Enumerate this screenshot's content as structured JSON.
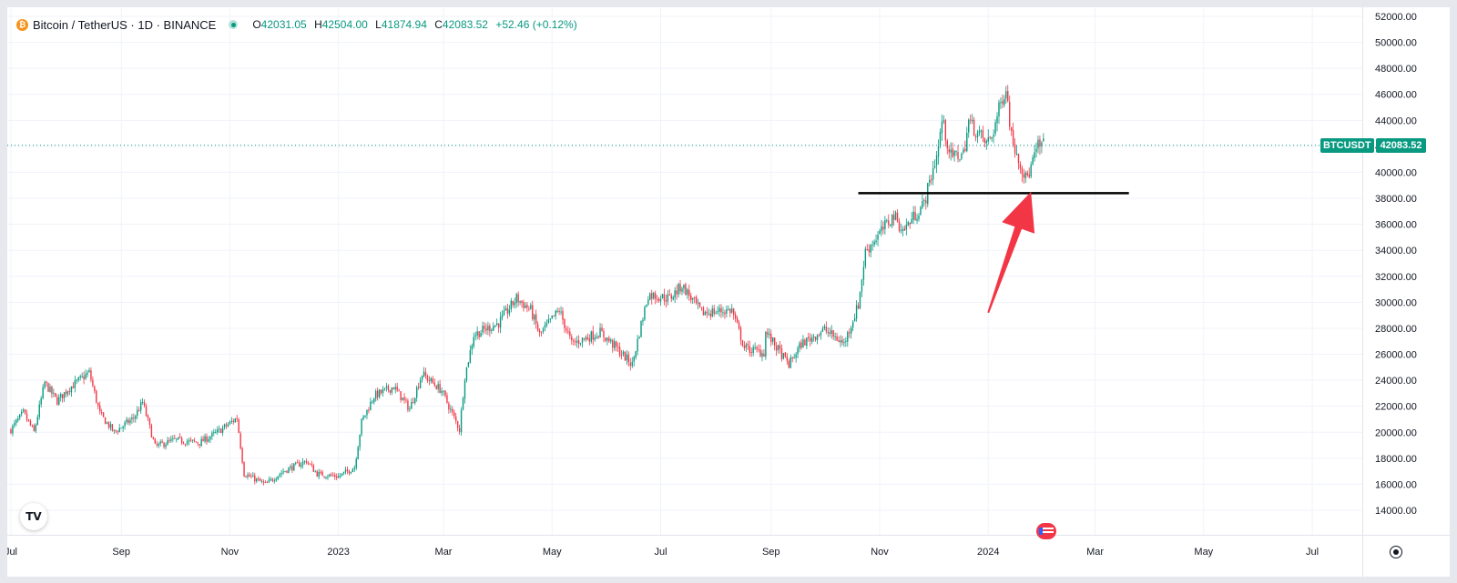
{
  "header": {
    "title": "Bitcoin / TetherUS · 1D · BINANCE",
    "logo_letter": "₿",
    "open_label": "O",
    "open": "42031.05",
    "high_label": "H",
    "high": "42504.00",
    "low_label": "L",
    "low": "41874.94",
    "close_label": "C",
    "close": "42083.52",
    "change": "+52.46 (+0.12%)"
  },
  "price_tag": {
    "symbol": "BTCUSDT",
    "value": "42083.52"
  },
  "watermark": "TV",
  "icons": {
    "settings": "gear-icon",
    "flag": "us-flag-icon",
    "logo": "tradingview-logo-icon"
  },
  "colors": {
    "up": "#089981",
    "down": "#f23645",
    "grid": "#f0f3fa",
    "text": "#131722",
    "arrow": "#f23645",
    "support_line": "#000000"
  },
  "chart_data": {
    "type": "candlestick",
    "symbol": "BTCUSDT",
    "timeframe": "1D",
    "exchange": "BINANCE",
    "x_ticks": [
      "Jul",
      "Sep",
      "Nov",
      "2023",
      "Mar",
      "May",
      "Jul",
      "Sep",
      "Nov",
      "2024",
      "Mar",
      "May",
      "Jul"
    ],
    "y_ticks": [
      "14000.00",
      "16000.00",
      "18000.00",
      "20000.00",
      "22000.00",
      "24000.00",
      "26000.00",
      "28000.00",
      "30000.00",
      "32000.00",
      "34000.00",
      "36000.00",
      "38000.00",
      "40000.00",
      "42000.00",
      "44000.00",
      "46000.00",
      "48000.00",
      "50000.00",
      "52000.00"
    ],
    "ylim": [
      12000,
      53000
    ],
    "x_range": [
      "2022-07-01",
      "2024-07-31"
    ],
    "current_price": 42083.52,
    "support_level": 38400,
    "support_from": "2023-10-20",
    "support_to": "2024-03-20",
    "arrow": {
      "from_date": "2024-01-01",
      "from_price": 29200,
      "to_date": "2024-01-25",
      "to_price": 38500
    },
    "path": [
      [
        "2022-07-01",
        20200
      ],
      [
        "2022-07-08",
        21500
      ],
      [
        "2022-07-14",
        20000
      ],
      [
        "2022-07-20",
        23800
      ],
      [
        "2022-07-27",
        22400
      ],
      [
        "2022-08-02",
        23300
      ],
      [
        "2022-08-14",
        24600
      ],
      [
        "2022-08-20",
        21400
      ],
      [
        "2022-08-28",
        20000
      ],
      [
        "2022-09-08",
        21100
      ],
      [
        "2022-09-13",
        22300
      ],
      [
        "2022-09-20",
        18900
      ],
      [
        "2022-10-01",
        19400
      ],
      [
        "2022-10-15",
        19200
      ],
      [
        "2022-10-25",
        20000
      ],
      [
        "2022-11-05",
        21100
      ],
      [
        "2022-11-09",
        16800
      ],
      [
        "2022-11-21",
        16000
      ],
      [
        "2022-12-01",
        17000
      ],
      [
        "2022-12-14",
        17800
      ],
      [
        "2022-12-20",
        16800
      ],
      [
        "2023-01-01",
        16600
      ],
      [
        "2023-01-10",
        17300
      ],
      [
        "2023-01-14",
        20800
      ],
      [
        "2023-01-21",
        22800
      ],
      [
        "2023-02-01",
        23500
      ],
      [
        "2023-02-10",
        21800
      ],
      [
        "2023-02-17",
        24500
      ],
      [
        "2023-02-28",
        23200
      ],
      [
        "2023-03-10",
        20200
      ],
      [
        "2023-03-13",
        24300
      ],
      [
        "2023-03-18",
        27500
      ],
      [
        "2023-04-01",
        28400
      ],
      [
        "2023-04-11",
        30300
      ],
      [
        "2023-04-19",
        29400
      ],
      [
        "2023-04-24",
        27500
      ],
      [
        "2023-05-05",
        29400
      ],
      [
        "2023-05-12",
        26800
      ],
      [
        "2023-05-28",
        27700
      ],
      [
        "2023-06-06",
        26500
      ],
      [
        "2023-06-15",
        25200
      ],
      [
        "2023-06-20",
        28300
      ],
      [
        "2023-06-24",
        30600
      ],
      [
        "2023-07-06",
        30300
      ],
      [
        "2023-07-13",
        31300
      ],
      [
        "2023-07-24",
        29200
      ],
      [
        "2023-08-10",
        29400
      ],
      [
        "2023-08-17",
        26500
      ],
      [
        "2023-08-28",
        26100
      ],
      [
        "2023-08-29",
        27700
      ],
      [
        "2023-09-11",
        25200
      ],
      [
        "2023-09-18",
        26800
      ],
      [
        "2023-10-01",
        27900
      ],
      [
        "2023-10-12",
        26800
      ],
      [
        "2023-10-20",
        29800
      ],
      [
        "2023-10-24",
        33900
      ],
      [
        "2023-11-09",
        36700
      ],
      [
        "2023-11-14",
        35500
      ],
      [
        "2023-11-26",
        37600
      ],
      [
        "2023-12-04",
        41900
      ],
      [
        "2023-12-06",
        44000
      ],
      [
        "2023-12-11",
        41200
      ],
      [
        "2023-12-18",
        41400
      ],
      [
        "2023-12-21",
        43900
      ],
      [
        "2023-12-31",
        42200
      ],
      [
        "2024-01-03",
        42800
      ],
      [
        "2024-01-09",
        45800
      ],
      [
        "2024-01-11",
        46600
      ],
      [
        "2024-01-14",
        42800
      ],
      [
        "2024-01-22",
        39500
      ],
      [
        "2024-01-24",
        40000
      ],
      [
        "2024-01-29",
        42000
      ],
      [
        "2024-02-01",
        42100
      ]
    ]
  }
}
